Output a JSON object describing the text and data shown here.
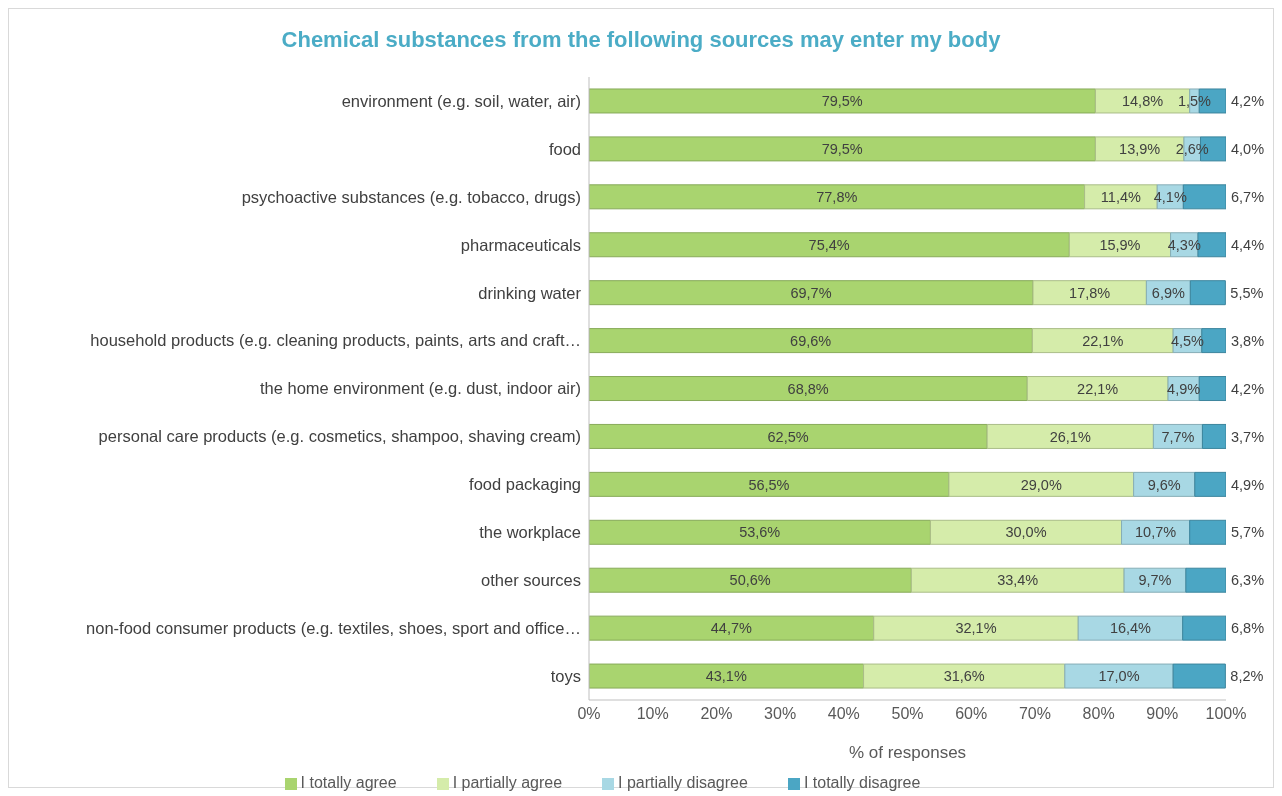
{
  "chart_data": {
    "type": "bar",
    "orientation": "horizontal",
    "stacked": true,
    "title": "Chemical substances from the following sources may enter my body",
    "xlabel": "% of responses",
    "categories": [
      "environment (e.g. soil, water, air)",
      "food",
      "psychoactive substances (e.g. tobacco, drugs)",
      "pharmaceuticals",
      "drinking water",
      "household products (e.g. cleaning products, paints, arts and craft…",
      "the home environment (e.g. dust, indoor air)",
      "personal care products (e.g. cosmetics, shampoo, shaving cream)",
      "food packaging",
      "the workplace",
      "other sources",
      "non-food consumer products (e.g. textiles, shoes, sport and office…",
      "toys"
    ],
    "series": [
      {
        "name": "I totally agree",
        "color": "#a9d46f",
        "values": [
          79.5,
          79.5,
          77.8,
          75.4,
          69.7,
          69.6,
          68.8,
          62.5,
          56.5,
          53.6,
          50.6,
          44.7,
          43.1
        ],
        "value_labels": [
          "79,5%",
          "79,5%",
          "77,8%",
          "75,4%",
          "69,7%",
          "69,6%",
          "68,8%",
          "62,5%",
          "56,5%",
          "53,6%",
          "50,6%",
          "44,7%",
          "43,1%"
        ]
      },
      {
        "name": "I partially agree",
        "color": "#d5ecaa",
        "values": [
          14.8,
          13.9,
          11.4,
          15.9,
          17.8,
          22.1,
          22.1,
          26.1,
          29.0,
          30.0,
          33.4,
          32.1,
          31.6
        ],
        "value_labels": [
          "14,8%",
          "13,9%",
          "11,4%",
          "15,9%",
          "17,8%",
          "22,1%",
          "22,1%",
          "26,1%",
          "29,0%",
          "30,0%",
          "33,4%",
          "32,1%",
          "31,6%"
        ]
      },
      {
        "name": "I partially disagree",
        "color": "#a8d8e4",
        "values": [
          1.5,
          2.6,
          4.1,
          4.3,
          6.9,
          4.5,
          4.9,
          7.7,
          9.6,
          10.7,
          9.7,
          16.4,
          17.0
        ],
        "value_labels": [
          "1,5%",
          "2,6%",
          "4,1%",
          "4,3%",
          "6,9%",
          "4,5%",
          "4,9%",
          "7,7%",
          "9,6%",
          "10,7%",
          "9,7%",
          "16,4%",
          "17,0%"
        ]
      },
      {
        "name": "I totally disagree",
        "color": "#4ba6c4",
        "values": [
          4.2,
          4.0,
          6.7,
          4.4,
          5.5,
          3.8,
          4.2,
          3.7,
          4.9,
          5.7,
          6.3,
          6.8,
          8.2
        ],
        "value_labels": [
          "4,2%",
          "4,0%",
          "6,7%",
          "4,4%",
          "5,5%",
          "3,8%",
          "4,2%",
          "3,7%",
          "4,9%",
          "5,7%",
          "6,3%",
          "6,8%",
          "8,2%"
        ]
      }
    ],
    "xlim": [
      0,
      100
    ],
    "xticks": [
      {
        "value": 0,
        "label": "0%"
      },
      {
        "value": 10,
        "label": "10%"
      },
      {
        "value": 20,
        "label": "20%"
      },
      {
        "value": 30,
        "label": "30%"
      },
      {
        "value": 40,
        "label": "40%"
      },
      {
        "value": 50,
        "label": "50%"
      },
      {
        "value": 60,
        "label": "60%"
      },
      {
        "value": 70,
        "label": "70%"
      },
      {
        "value": 80,
        "label": "80%"
      },
      {
        "value": 90,
        "label": "90%"
      },
      {
        "value": 100,
        "label": "100%"
      }
    ],
    "legend": "bottom"
  }
}
